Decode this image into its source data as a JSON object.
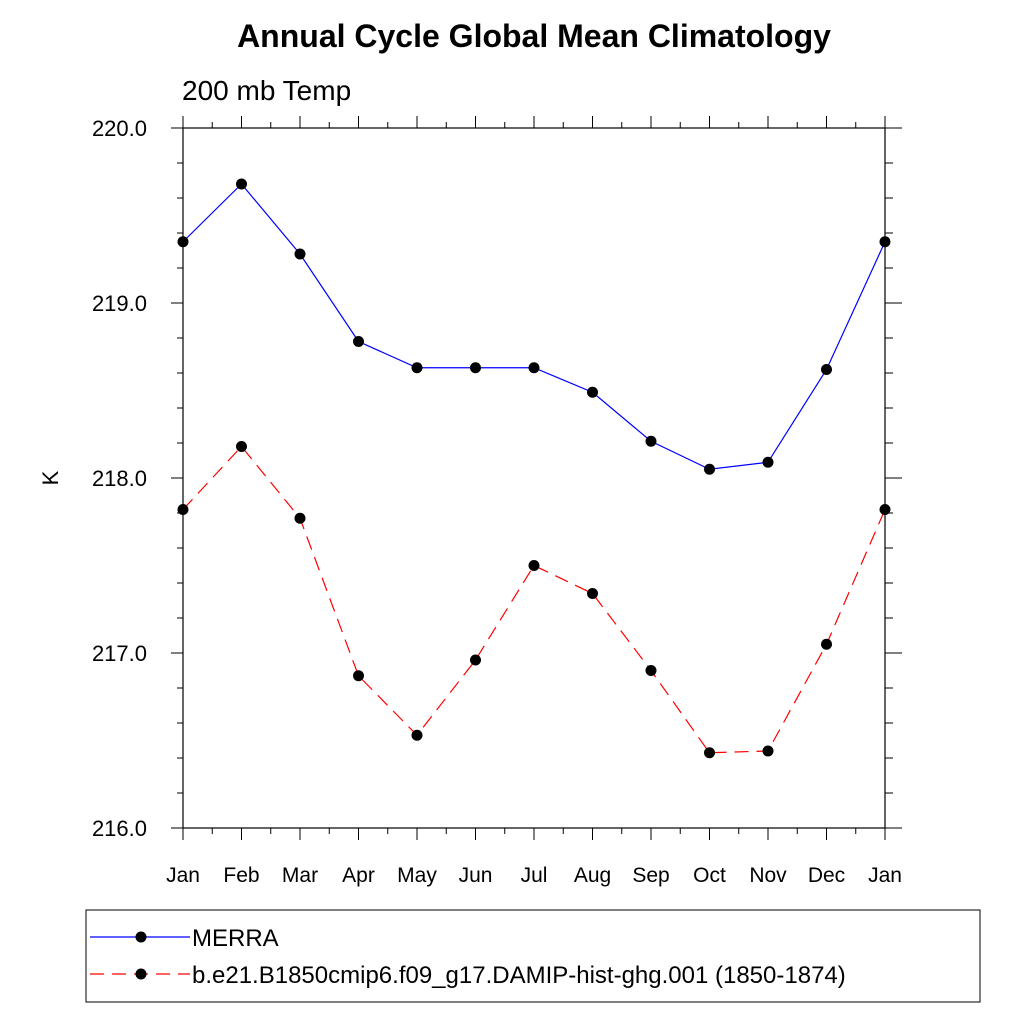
{
  "chart_data": {
    "type": "line",
    "title": "Annual Cycle Global Mean Climatology",
    "subtitle": "200 mb Temp",
    "ylabel": "K",
    "xlabel": "",
    "categories": [
      "Jan",
      "Feb",
      "Mar",
      "Apr",
      "May",
      "Jun",
      "Jul",
      "Aug",
      "Sep",
      "Oct",
      "Nov",
      "Dec",
      "Jan"
    ],
    "ylim": [
      216.0,
      220.0
    ],
    "yticks": [
      "216.0",
      "217.0",
      "218.0",
      "219.0",
      "220.0"
    ],
    "series": [
      {
        "name": "MERRA",
        "color": "#0000ff",
        "dash": "solid",
        "marker": "filled-circle",
        "values": [
          219.35,
          219.68,
          219.28,
          218.78,
          218.63,
          218.63,
          218.63,
          218.49,
          218.21,
          218.05,
          218.09,
          218.62,
          219.35
        ]
      },
      {
        "name": "b.e21.B1850cmip6.f09_g17.DAMIP-hist-ghg.001 (1850-1874)",
        "color": "#ff0000",
        "dash": "dashed",
        "marker": "filled-circle",
        "values": [
          217.82,
          218.18,
          217.77,
          216.87,
          216.53,
          216.96,
          217.5,
          217.34,
          216.9,
          216.43,
          216.44,
          217.05,
          217.82
        ]
      }
    ],
    "grid": false,
    "legend_position": "bottom"
  }
}
